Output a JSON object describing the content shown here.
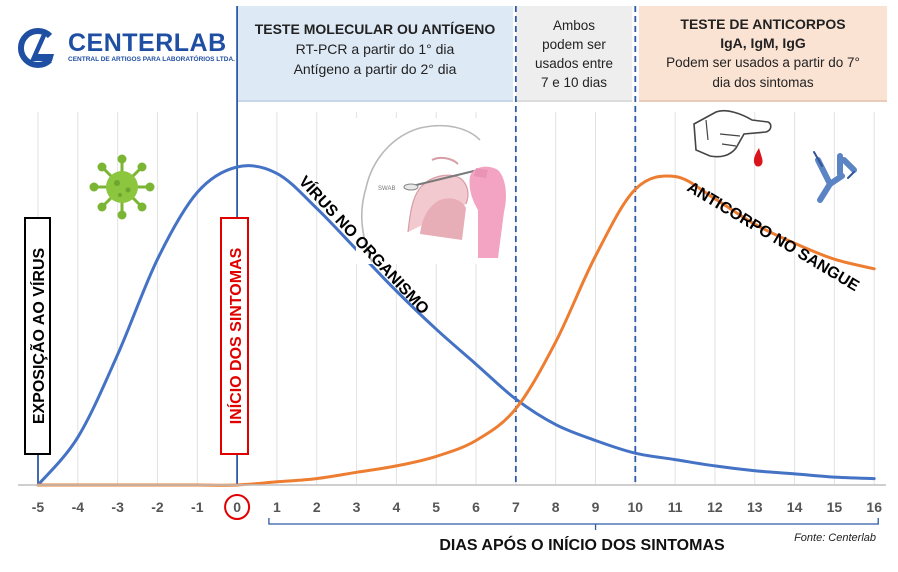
{
  "brand": {
    "name": "CENTERLAB",
    "tagline": "CENTRAL DE ARTIGOS PARA LABORATÓRIOS LTDA.",
    "color": "#1f4fa3"
  },
  "boxes": {
    "molecular": {
      "title": "TESTE MOLECULAR OU ANTÍGENO",
      "line1": "RT-PCR a partir do 1° dia",
      "line2": "Antígeno a partir do 2° dia",
      "bg": "#dde9f5"
    },
    "both": {
      "line1": "Ambos",
      "line2": "podem ser",
      "line3": "usados entre",
      "line4": "7 e 10 dias",
      "bg": "#eeeeee"
    },
    "antibody": {
      "title1": "TESTE DE ANTICORPOS",
      "title2": "IgA, IgM, IgG",
      "line1": "Podem ser usados a partir do 7°",
      "line2": "dia dos sintomas",
      "bg": "#fbe3d4"
    }
  },
  "icons": {
    "virus": "virus-icon",
    "swab": "nasal-swab-icon",
    "finger": "finger-prick-icon",
    "antibody": "antibody-icon"
  },
  "swab_label": "SWAB",
  "source": "Fonte: Centerlab",
  "chart_data": {
    "type": "line",
    "title": "",
    "xlabel": "DIAS APÓS O INÍCIO DOS SINTOMAS",
    "ylabel": "",
    "x": [
      -5,
      -4,
      -3,
      -2,
      -1,
      0,
      1,
      2,
      3,
      4,
      5,
      6,
      7,
      8,
      9,
      10,
      11,
      12,
      13,
      14,
      15,
      16
    ],
    "xlim": [
      -5,
      16
    ],
    "ylim": [
      0,
      100
    ],
    "grid": "vertical",
    "highlighted_tick": 0,
    "series": [
      {
        "name": "VÍRUS NO ORGANISMO",
        "color": "#4472c4",
        "values": [
          0,
          15,
          41,
          71,
          92,
          100,
          98,
          87,
          74,
          61,
          49,
          38,
          27,
          19,
          14,
          10,
          8,
          6,
          4.5,
          3.5,
          2.5,
          2
        ]
      },
      {
        "name": "ANTICORPO NO SANGUE",
        "color": "#ed7d31",
        "values": [
          0,
          0,
          0,
          0,
          0,
          0,
          1,
          2,
          4,
          6,
          9,
          14,
          24,
          45,
          72,
          93,
          97,
          90,
          82,
          76,
          71,
          68
        ]
      }
    ],
    "markers": [
      {
        "x": -5,
        "label": "EXPOSIÇÃO AO VÍRUS",
        "color": "#000000",
        "line": "solid"
      },
      {
        "x": 0,
        "label": "INÍCIO DOS SINTOMAS",
        "color": "#e00000",
        "line": "solid"
      },
      {
        "x": 7,
        "label": "",
        "color": "#2e5aa8",
        "line": "dashed"
      },
      {
        "x": 10,
        "label": "",
        "color": "#2e5aa8",
        "line": "dashed"
      }
    ]
  }
}
